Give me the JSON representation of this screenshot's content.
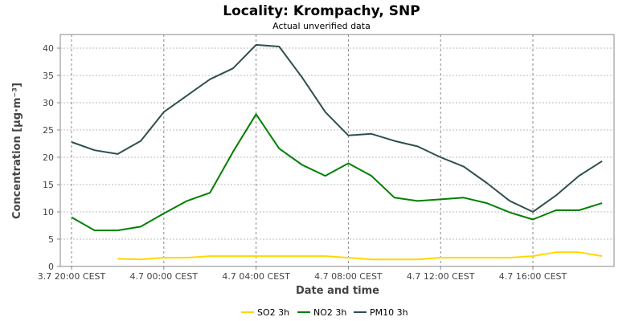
{
  "chart_data": {
    "type": "line",
    "title": "Locality: Krompachy, SNP",
    "subtitle": "Actual unverified data",
    "xlabel": "Date and time",
    "ylabel": "Concentration [µg·m⁻³]",
    "x_tick_labels": [
      "3.7 20:00 CEST",
      "4.7 00:00 CEST",
      "4.7 04:00 CEST",
      "4.7 08:00 CEST",
      "4.7 12:00 CEST",
      "4.7 16:00 CEST"
    ],
    "y_tick_labels": [
      "0",
      "5",
      "10",
      "15",
      "20",
      "25",
      "30",
      "35",
      "40"
    ],
    "ylim": [
      0,
      42.5
    ],
    "x_unit": "hours from 3.7 20:00 CEST",
    "xlim": [
      -0.5,
      23.5
    ],
    "grid": true,
    "legend_position": "bottom",
    "series": [
      {
        "name": "SO2 3h",
        "color": "#ffd700",
        "points": [
          [
            2,
            1.4
          ],
          [
            3,
            1.3
          ],
          [
            4,
            1.6
          ],
          [
            5,
            1.6
          ],
          [
            6,
            1.9
          ],
          [
            7,
            1.9
          ],
          [
            8,
            1.9
          ],
          [
            9,
            1.9
          ],
          [
            10,
            1.9
          ],
          [
            11,
            1.9
          ],
          [
            12,
            1.6
          ],
          [
            13,
            1.3
          ],
          [
            14,
            1.3
          ],
          [
            15,
            1.3
          ],
          [
            16,
            1.6
          ],
          [
            17,
            1.6
          ],
          [
            18,
            1.6
          ],
          [
            19,
            1.6
          ],
          [
            20,
            1.9
          ],
          [
            21,
            2.6
          ],
          [
            22,
            2.6
          ],
          [
            23,
            1.9
          ]
        ]
      },
      {
        "name": "NO2 3h",
        "color": "#008000",
        "points": [
          [
            0,
            9
          ],
          [
            1,
            6.6
          ],
          [
            2,
            6.6
          ],
          [
            3,
            7.3
          ],
          [
            4,
            9.7
          ],
          [
            5,
            12
          ],
          [
            6,
            13.5
          ],
          [
            7,
            21
          ],
          [
            8,
            27.9
          ],
          [
            9,
            21.6
          ],
          [
            10,
            18.6
          ],
          [
            11,
            16.6
          ],
          [
            12,
            18.9
          ],
          [
            13,
            16.6
          ],
          [
            14,
            12.6
          ],
          [
            15,
            12
          ],
          [
            16,
            12.3
          ],
          [
            17,
            12.6
          ],
          [
            18,
            11.6
          ],
          [
            19,
            9.9
          ],
          [
            20,
            8.6
          ],
          [
            21,
            10.3
          ],
          [
            22,
            10.3
          ],
          [
            23,
            11.6
          ]
        ]
      },
      {
        "name": "PM10 3h",
        "color": "#2f4f4f",
        "points": [
          [
            0,
            22.8
          ],
          [
            1,
            21.3
          ],
          [
            2,
            20.6
          ],
          [
            3,
            23
          ],
          [
            4,
            28.3
          ],
          [
            5,
            31.3
          ],
          [
            6,
            34.3
          ],
          [
            7,
            36.3
          ],
          [
            8,
            40.6
          ],
          [
            9,
            40.3
          ],
          [
            10,
            34.6
          ],
          [
            11,
            28.3
          ],
          [
            12,
            24
          ],
          [
            13,
            24.3
          ],
          [
            14,
            23
          ],
          [
            15,
            22
          ],
          [
            16,
            20
          ],
          [
            17,
            18.3
          ],
          [
            18,
            15.3
          ],
          [
            19,
            12
          ],
          [
            20,
            10
          ],
          [
            21,
            13
          ],
          [
            22,
            16.6
          ],
          [
            23,
            19.3
          ]
        ]
      }
    ]
  }
}
